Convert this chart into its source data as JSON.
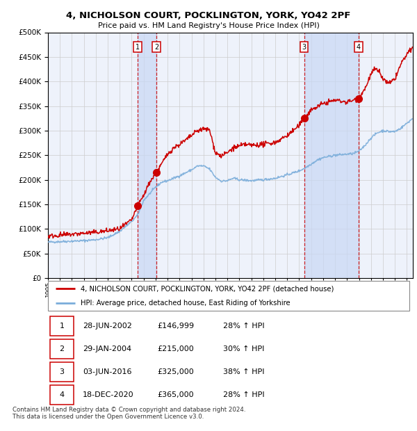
{
  "title": "4, NICHOLSON COURT, POCKLINGTON, YORK, YO42 2PF",
  "subtitle": "Price paid vs. HM Land Registry's House Price Index (HPI)",
  "footer": "Contains HM Land Registry data © Crown copyright and database right 2024.\nThis data is licensed under the Open Government Licence v3.0.",
  "legend_label_red": "4, NICHOLSON COURT, POCKLINGTON, YORK, YO42 2PF (detached house)",
  "legend_label_blue": "HPI: Average price, detached house, East Riding of Yorkshire",
  "transactions": [
    {
      "label": "1",
      "date": "28-JUN-2002",
      "date_num": 2002.49,
      "price": 146999,
      "hpi_pct": "28% ↑ HPI"
    },
    {
      "label": "2",
      "date": "29-JAN-2004",
      "date_num": 2004.08,
      "price": 215000,
      "hpi_pct": "30% ↑ HPI"
    },
    {
      "label": "3",
      "date": "03-JUN-2016",
      "date_num": 2016.42,
      "price": 325000,
      "hpi_pct": "38% ↑ HPI"
    },
    {
      "label": "4",
      "date": "18-DEC-2020",
      "date_num": 2020.96,
      "price": 365000,
      "hpi_pct": "28% ↑ HPI"
    }
  ],
  "ylim": [
    0,
    500000
  ],
  "xlim_start": 1995.0,
  "xlim_end": 2025.5,
  "red_color": "#cc0000",
  "blue_color": "#7aadda",
  "background_color": "#ffffff",
  "grid_color": "#cccccc",
  "plot_bg_color": "#eef2fb"
}
